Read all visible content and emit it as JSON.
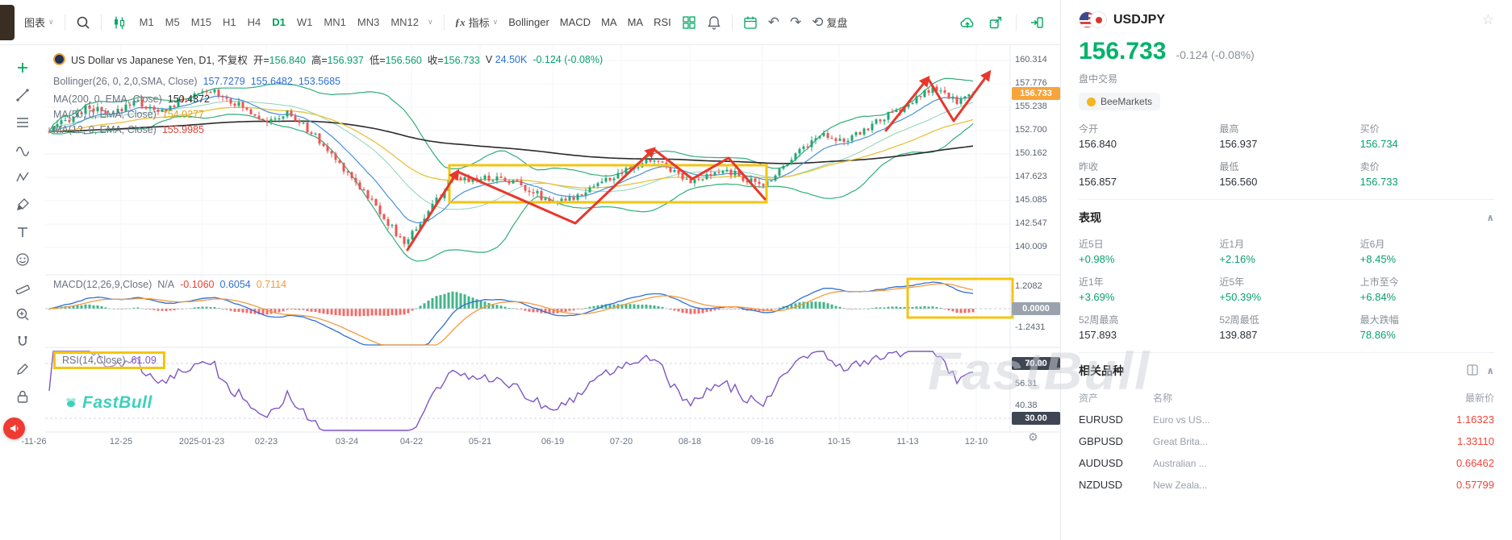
{
  "app": {
    "brand": "FastBull",
    "watermark": "FastBull"
  },
  "colors": {
    "up_green": "#21a876",
    "down_red": "#ef5350",
    "accent_green": "#00a862",
    "price_green": "#00b26a",
    "value_red": "#f0443c",
    "badge_orange": "#f7a43a",
    "annotation_yellow": "#f3c512",
    "annotation_red": "#e8372c",
    "rsi_purple": "#7e57c2",
    "macd_blue": "#2f6fd6",
    "macd_orange": "#f59a3d"
  },
  "icons": [
    "app-logo",
    "search-icon",
    "candle-style-icon",
    "indicators-fx-icon",
    "layout-grid-icon",
    "bell-icon",
    "calendar-icon",
    "undo-icon",
    "redo-icon",
    "replay-icon",
    "cloud-upload-icon",
    "export-icon",
    "collapse-panel-icon",
    "crosshair-icon",
    "trendline-icon",
    "fib-icon",
    "wave-icon",
    "pattern-icon",
    "brush-icon",
    "text-tool-icon",
    "emoji-icon",
    "ruler-icon",
    "zoom-icon",
    "magnet-icon",
    "pencil-icon",
    "lock-icon",
    "megaphone-icon",
    "gear-icon",
    "star-icon"
  ],
  "toolbar": {
    "chart_menu": "图表",
    "timeframes": [
      "M1",
      "M5",
      "M15",
      "H1",
      "H4",
      "D1",
      "W1",
      "MN1",
      "MN3",
      "MN12"
    ],
    "active_timeframe": "D1",
    "indicators_menu": "指标",
    "indicator_chips": [
      "Bollinger",
      "MACD",
      "MA",
      "MA",
      "RSI"
    ],
    "replay": "复盘"
  },
  "chart": {
    "legend": {
      "title": "US Dollar vs Japanese Yen, D1, 不复权",
      "open_label": "开=",
      "open": "156.840",
      "high_label": "高=",
      "high": "156.937",
      "low_label": "低=",
      "low": "156.560",
      "close_label": "收=",
      "close": "156.733",
      "volume_label": "V",
      "volume": "24.50K",
      "change": "-0.124 (-0.08%)",
      "bollinger_label": "Bollinger(26, 0, 2,0,SMA, Close)",
      "bollinger_values": [
        "157.7279",
        "155.6482",
        "153.5685"
      ],
      "ma200_label": "MA(200, 0, EMA, Close)",
      "ma200": "150.4372",
      "ma50_label": "MA(50, 0, EMA, Close)",
      "ma50": "154.0277",
      "ma12_label": "MA(12, 0, EMA, Close)",
      "ma12": "155.9985"
    },
    "price_axis": [
      "160.314",
      "157.776",
      "155.238",
      "152.700",
      "150.162",
      "147.623",
      "145.085",
      "142.547",
      "140.009"
    ],
    "current_price": "156.733",
    "macd": {
      "label": "MACD(12,26,9,Close)",
      "na": "N/A",
      "hist": "-0.1060",
      "macd": "0.6054",
      "signal": "0.7114",
      "axis_top": "1.2082",
      "axis_zero": "0.0000",
      "axis_bottom": "-1.2431"
    },
    "rsi": {
      "label": "RSI(14,Close)",
      "value": "61.09",
      "levels": [
        "70.00",
        "56.31",
        "40.38",
        "30.00"
      ]
    },
    "time_axis": [
      "-11-26",
      "12-25",
      "2025-01-23",
      "02-23",
      "03-24",
      "04-22",
      "05-21",
      "06-19",
      "07-20",
      "08-18",
      "09-16",
      "10-15",
      "11-13",
      "12-10"
    ]
  },
  "sidebar": {
    "symbol": "USDJPY",
    "price": "156.733",
    "change": "-0.124 (-0.08%)",
    "session": "盘中交易",
    "broker": "BeeMarkets",
    "stats": [
      {
        "label": "今开",
        "value": "156.840"
      },
      {
        "label": "最高",
        "value": "156.937"
      },
      {
        "label": "买价",
        "value": "156.734"
      },
      {
        "label": "昨收",
        "value": "156.857"
      },
      {
        "label": "最低",
        "value": "156.560"
      },
      {
        "label": "卖价",
        "value": "156.733"
      }
    ],
    "performance": {
      "title": "表现",
      "items": [
        {
          "label": "近5日",
          "value": "+0.98%"
        },
        {
          "label": "近1月",
          "value": "+2.16%"
        },
        {
          "label": "近6月",
          "value": "+8.45%"
        },
        {
          "label": "近1年",
          "value": "+3.69%"
        },
        {
          "label": "近5年",
          "value": "+50.39%"
        },
        {
          "label": "上市至今",
          "value": "+6.84%"
        },
        {
          "label": "52周最高",
          "value": "157.893"
        },
        {
          "label": "52周最低",
          "value": "139.887"
        },
        {
          "label": "最大跌幅",
          "value": "78.86%"
        }
      ]
    },
    "related": {
      "title": "相关品种",
      "headers": [
        "资产",
        "名称",
        "最新价"
      ],
      "rows": [
        {
          "asset": "EURUSD",
          "name": "Euro vs US...",
          "price": "1.16323"
        },
        {
          "asset": "GBPUSD",
          "name": "Great Brita...",
          "price": "1.33110"
        },
        {
          "asset": "AUDUSD",
          "name": "Australian ...",
          "price": "0.66462"
        },
        {
          "asset": "NZDUSD",
          "name": "New Zeala...",
          "price": "0.57799"
        }
      ]
    }
  }
}
